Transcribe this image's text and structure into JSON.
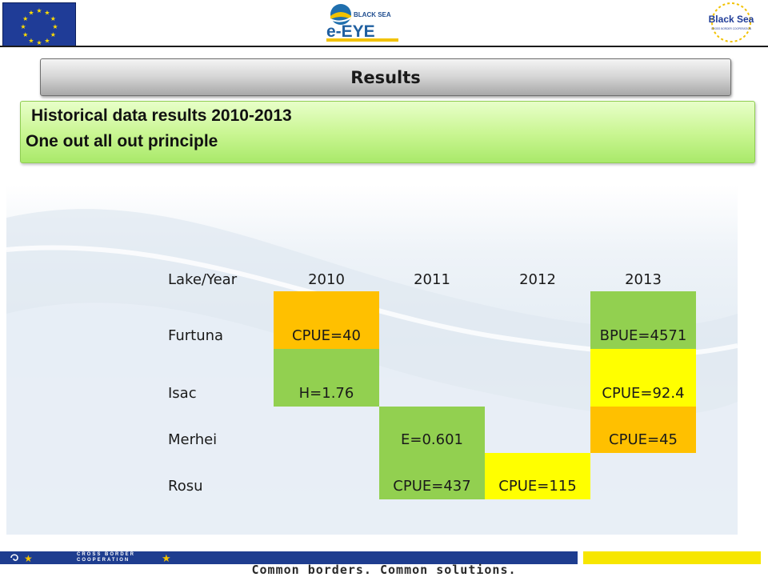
{
  "header": {
    "logo_center_small": "BLACK SEA",
    "logo_center_main": "e-EYE",
    "logo_right_main": "Black Sea",
    "logo_right_small": "CROSS BORDER COOPERATION"
  },
  "slide": {
    "title": "Results",
    "subtitle_line1": "Historical data results 2010-2013",
    "subtitle_line2": "One out all out principle"
  },
  "table": {
    "header": [
      "Lake/Year",
      "2010",
      "2011",
      "2012",
      "2013"
    ],
    "rows": [
      {
        "lake": "Furtuna",
        "cells": [
          {
            "text": "CPUE=40",
            "color": "#ffc000"
          },
          {
            "text": "",
            "color": ""
          },
          {
            "text": "",
            "color": ""
          },
          {
            "text": "BPUE=4571",
            "color": "#92d050"
          }
        ]
      },
      {
        "lake": "Isac",
        "cells": [
          {
            "text": "H=1.76",
            "color": "#92d050"
          },
          {
            "text": "",
            "color": ""
          },
          {
            "text": "",
            "color": ""
          },
          {
            "text": "CPUE=92.4",
            "color": "#ffff00"
          }
        ]
      },
      {
        "lake": "Merhei",
        "cells": [
          {
            "text": "",
            "color": ""
          },
          {
            "text": "E=0.601",
            "color": "#92d050"
          },
          {
            "text": "",
            "color": ""
          },
          {
            "text": "CPUE=45",
            "color": "#ffc000"
          }
        ]
      },
      {
        "lake": "Rosu",
        "cells": [
          {
            "text": "",
            "color": ""
          },
          {
            "text": "CPUE=437",
            "color": "#92d050"
          },
          {
            "text": "CPUE=115",
            "color": "#ffff00"
          },
          {
            "text": "",
            "color": ""
          }
        ]
      }
    ]
  },
  "footer": {
    "program_line1": "CROSS BORDER",
    "program_line2": "COOPERATION",
    "slogan": "Common borders. Common solutions."
  },
  "colors": {
    "green": "#92d050",
    "orange": "#ffc000",
    "yellow": "#ffff00",
    "eu_blue": "#1f3c97"
  }
}
